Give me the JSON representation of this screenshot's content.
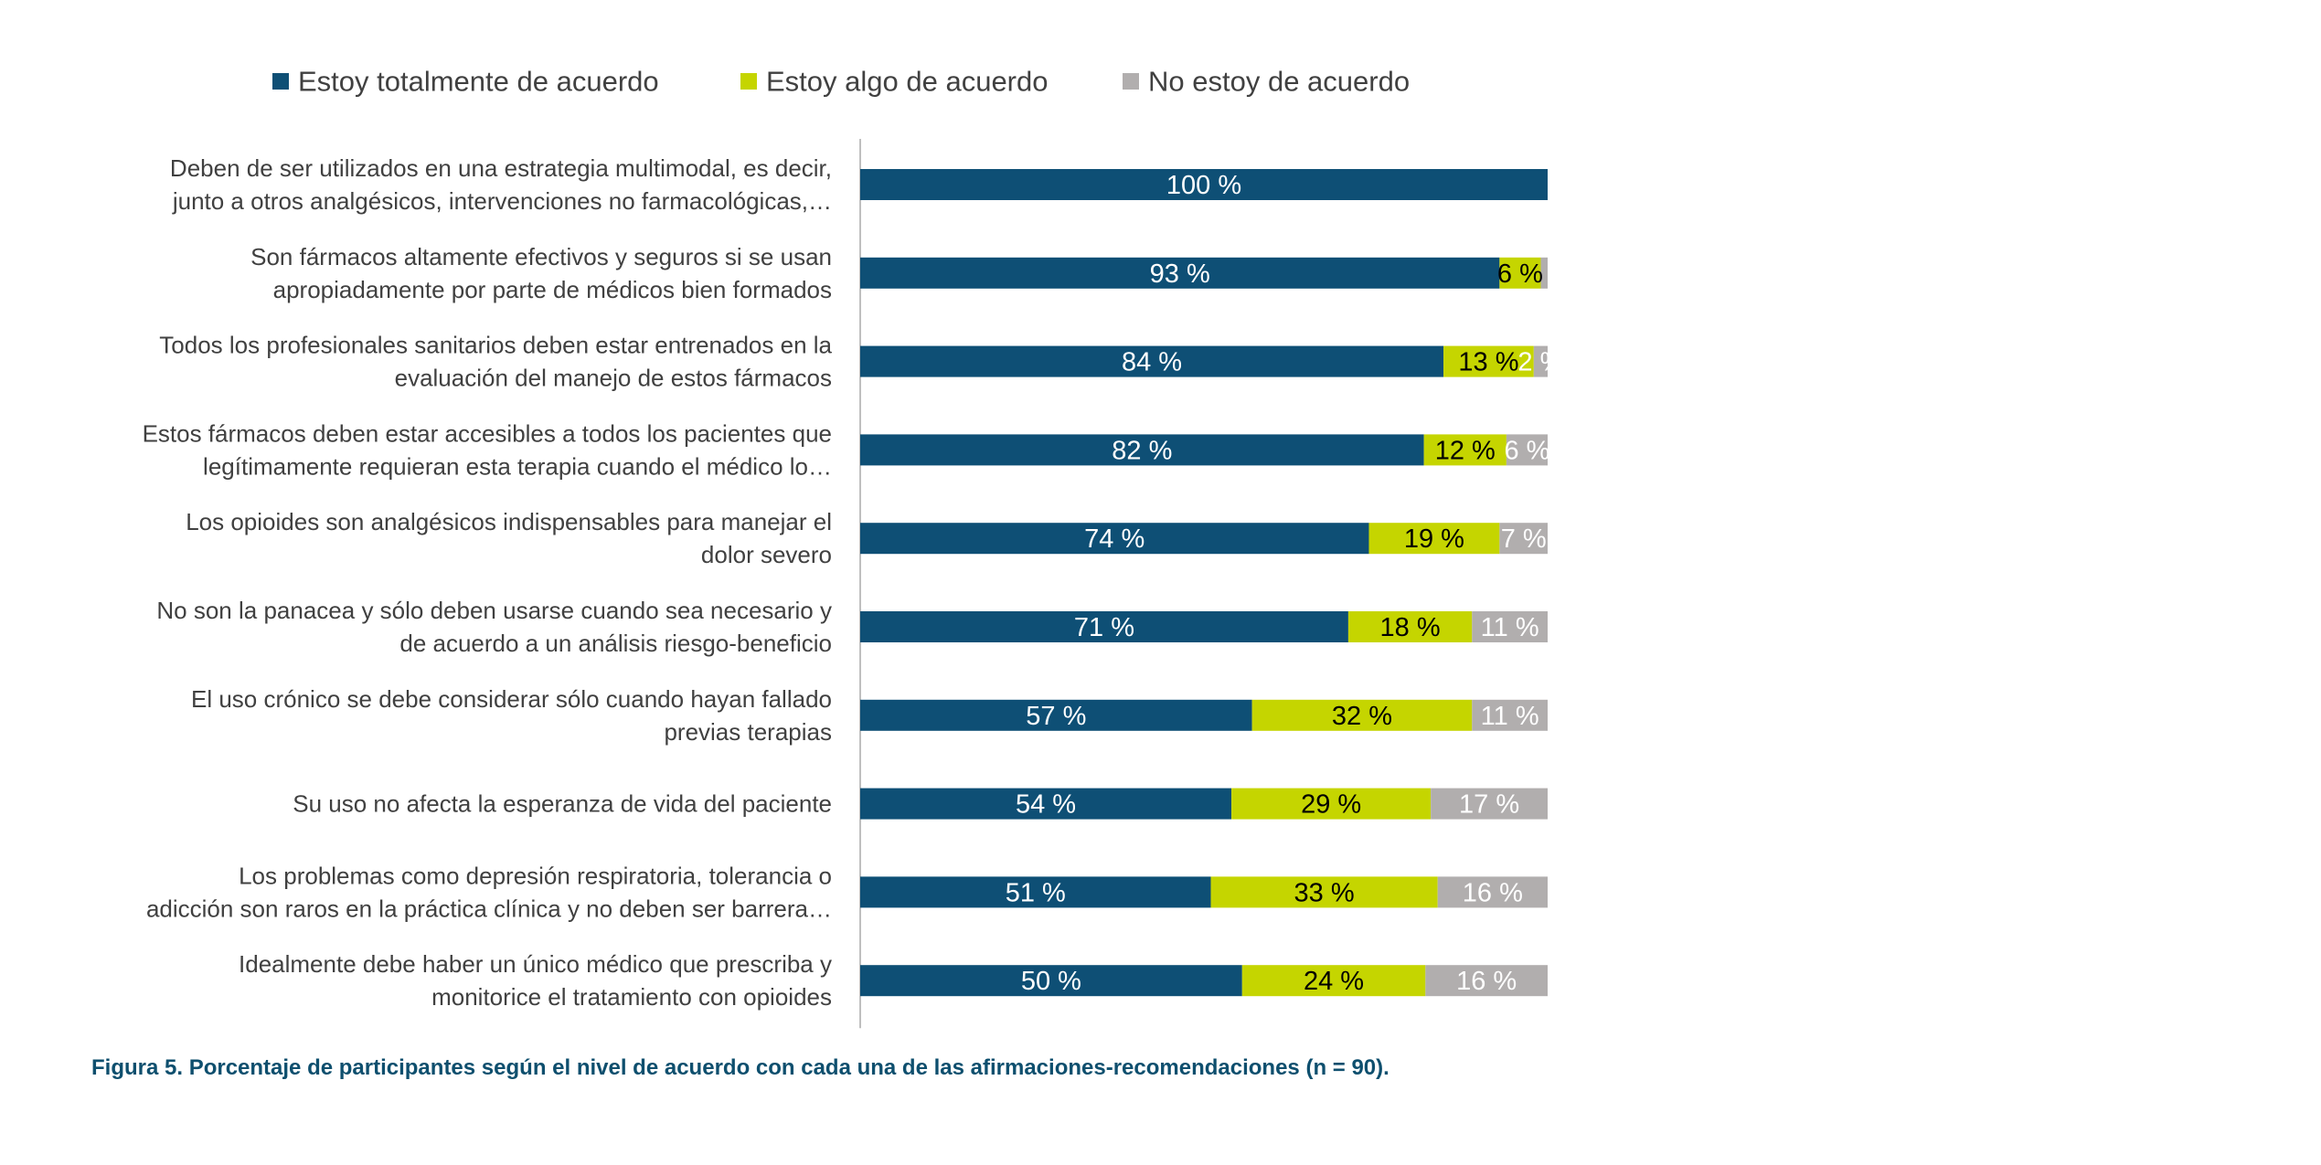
{
  "chart_data": {
    "type": "bar",
    "orientation": "horizontal",
    "stacked": true,
    "normalized": true,
    "legend_position": "top",
    "grid": false,
    "xlim": [
      0,
      100
    ],
    "unit": "%",
    "categories": [
      [
        "Deben de ser utilizados en una estrategia multimodal, es decir,",
        "junto a otros analgésicos, intervenciones no farmacológicas,…"
      ],
      [
        "Son fármacos altamente efectivos y seguros si se usan",
        "apropiadamente por parte de médicos bien formados"
      ],
      [
        "Todos los profesionales sanitarios deben estar entrenados en la",
        "evaluación del manejo de estos fármacos"
      ],
      [
        "Estos fármacos deben estar accesibles a todos los pacientes que",
        "legítimamente requieran esta terapia cuando el médico lo…"
      ],
      [
        "Los opioides son analgésicos indispensables para manejar el",
        "dolor severo"
      ],
      [
        "No son la panacea y sólo deben usarse cuando sea necesario y",
        "de acuerdo a un análisis riesgo-beneficio"
      ],
      [
        "El uso crónico se debe considerar sólo cuando hayan fallado",
        "previas terapias"
      ],
      [
        "Su uso no afecta la esperanza de vida del paciente"
      ],
      [
        "Los problemas como depresión respiratoria, tolerancia o",
        "adicción son raros en la práctica clínica y no deben ser barrera…"
      ],
      [
        "Idealmente debe haber un único médico que prescriba y",
        "monitorice el tratamiento con opioides"
      ]
    ],
    "series": [
      {
        "name": "Estoy totalmente de acuerdo",
        "color": "#0e4f75",
        "label_color": "#ffffff",
        "values": [
          100,
          93,
          84,
          82,
          74,
          71,
          57,
          54,
          51,
          50
        ]
      },
      {
        "name": "Estoy algo de acuerdo",
        "color": "#c5d500",
        "label_color": "#000000",
        "values": [
          0,
          6,
          13,
          12,
          19,
          18,
          32,
          29,
          33,
          24
        ]
      },
      {
        "name": "No estoy de acuerdo",
        "color": "#b1aeae",
        "label_color": "#ffffff",
        "values": [
          0,
          1,
          2,
          6,
          7,
          11,
          11,
          17,
          16,
          16
        ]
      }
    ],
    "data_labels": [
      [
        "100 %",
        "",
        ""
      ],
      [
        "93 %",
        "6 %",
        ""
      ],
      [
        "84 %",
        "13 %",
        "2 %"
      ],
      [
        "82 %",
        "12 %",
        "6 %"
      ],
      [
        "74 %",
        "19 %",
        "7 %"
      ],
      [
        "71 %",
        "18 %",
        "11 %"
      ],
      [
        "57 %",
        "32 %",
        "11 %"
      ],
      [
        "54 %",
        "29 %",
        "17 %"
      ],
      [
        "51 %",
        "33 %",
        "16 %"
      ],
      [
        "50 %",
        "24 %",
        "16 %"
      ]
    ]
  },
  "caption": "Figura 5. Porcentaje de participantes según el nivel de acuerdo con cada una de las afirmaciones-recomendaciones (n = 90)."
}
